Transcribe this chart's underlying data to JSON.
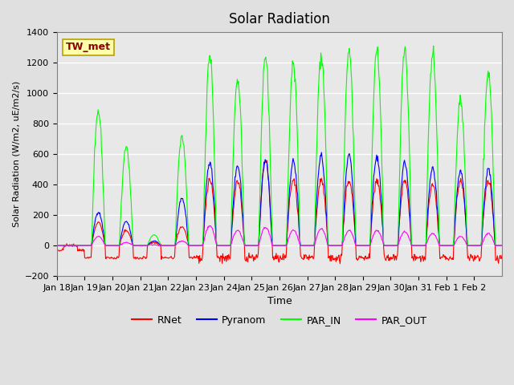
{
  "title": "Solar Radiation",
  "xlabel": "Time",
  "ylabel": "Solar Radiation (W/m2, uE/m2/s)",
  "ylim": [
    -200,
    1400
  ],
  "yticks": [
    -200,
    0,
    200,
    400,
    600,
    800,
    1000,
    1200,
    1400
  ],
  "background_color": "#e0e0e0",
  "plot_bg_color": "#e8e8e8",
  "legend_entries": [
    "RNet",
    "Pyranom",
    "PAR_IN",
    "PAR_OUT"
  ],
  "legend_colors": [
    "red",
    "blue",
    "lime",
    "magenta"
  ],
  "station_label": "TW_met",
  "station_label_color": "#8b0000",
  "station_box_color": "#ffffaa",
  "x_tick_labels": [
    "Jan 18",
    "Jan 19",
    "Jan 20",
    "Jan 21",
    "Jan 22",
    "Jan 23",
    "Jan 24",
    "Jan 25",
    "Jan 26",
    "Jan 27",
    "Jan 28",
    "Jan 29",
    "Jan 30",
    "Jan 31",
    "Feb 1",
    "Feb 2"
  ],
  "n_days": 16,
  "pts_per_day": 48,
  "par_in_peaks": [
    0,
    880,
    650,
    70,
    720,
    1250,
    1100,
    1250,
    1200,
    1250,
    1280,
    1290,
    1290,
    1260,
    960,
    1140
  ],
  "pyranom_peaks": [
    0,
    220,
    160,
    30,
    310,
    545,
    520,
    555,
    555,
    590,
    590,
    580,
    545,
    510,
    490,
    500
  ],
  "rnet_peaks": [
    0,
    150,
    100,
    20,
    120,
    430,
    420,
    560,
    430,
    430,
    430,
    430,
    430,
    400,
    430,
    430
  ],
  "par_out_peaks": [
    0,
    60,
    20,
    5,
    30,
    130,
    100,
    120,
    100,
    110,
    100,
    100,
    90,
    80,
    60,
    80
  ]
}
